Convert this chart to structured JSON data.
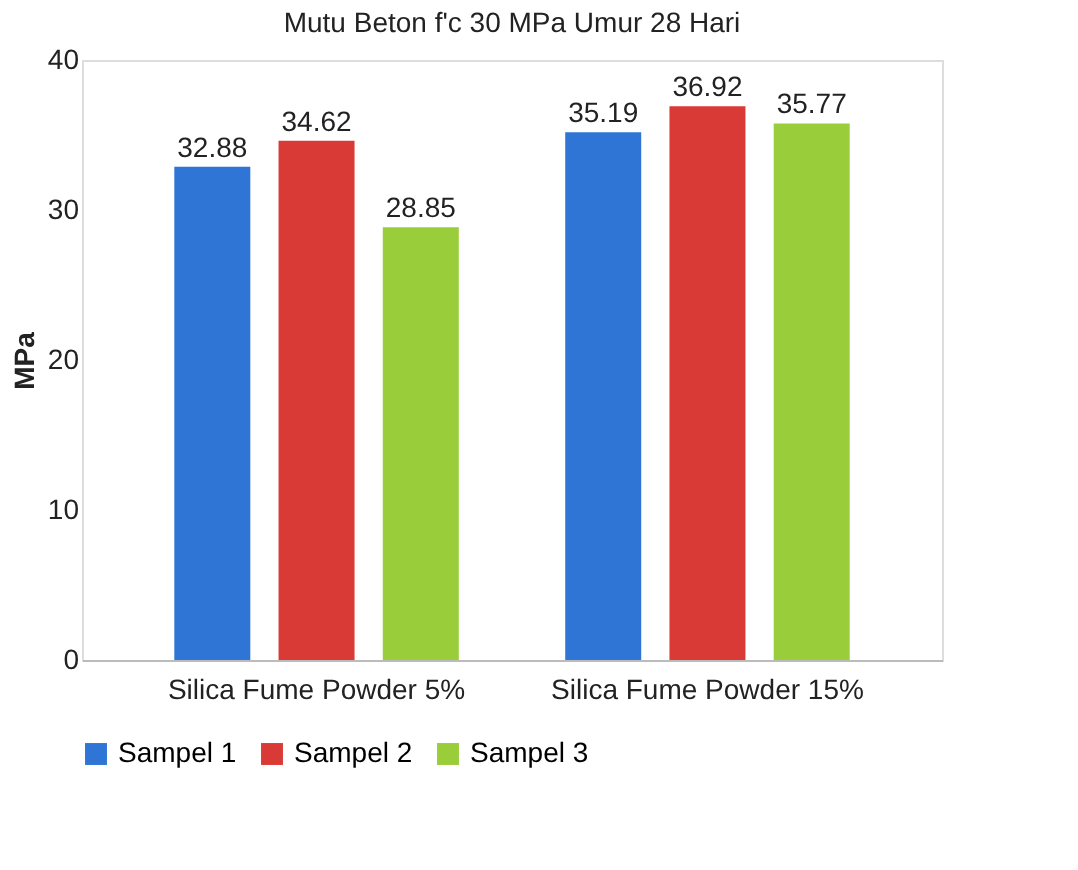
{
  "chart_data": {
    "type": "bar",
    "title": "Mutu Beton f'c 30 MPa Umur 28 Hari",
    "ylabel": "MPa",
    "categories": [
      "Silica Fume Powder 5%",
      "Silica Fume Powder 15%"
    ],
    "series": [
      {
        "name": "Sampel 1",
        "color": "#2e75d6",
        "values": [
          32.88,
          35.19
        ]
      },
      {
        "name": "Sampel 2",
        "color": "#d93a35",
        "values": [
          34.62,
          36.92
        ]
      },
      {
        "name": "Sampel 3",
        "color": "#9acd3a",
        "values": [
          28.85,
          35.77
        ]
      }
    ],
    "ylim": [
      0,
      40
    ],
    "yticks": [
      0,
      10,
      20,
      30,
      40
    ],
    "grid": false,
    "legend": "bottom",
    "data_labels": true
  }
}
